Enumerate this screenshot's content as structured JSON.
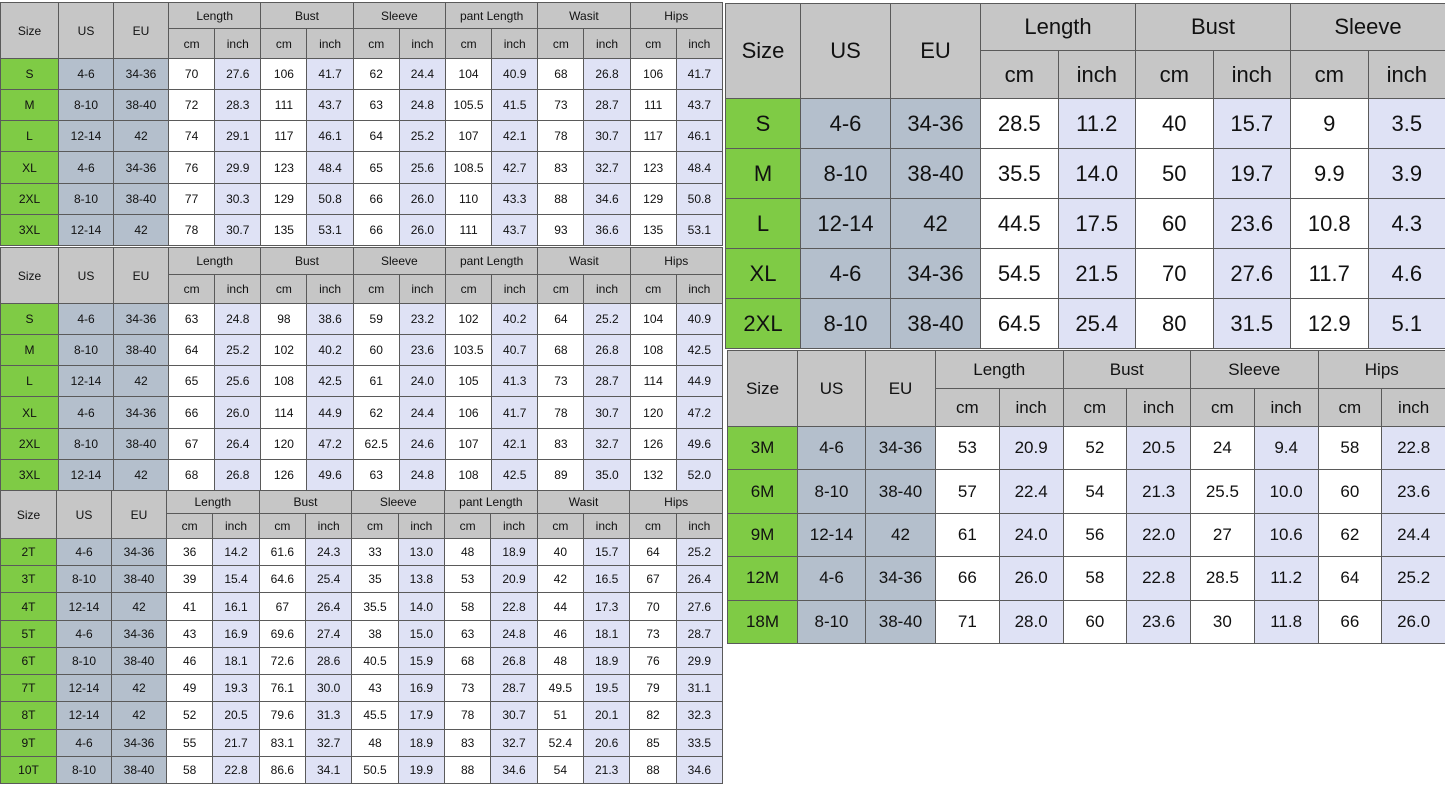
{
  "colors": {
    "header": "#c6c6c6",
    "size_cell": "#7fcb45",
    "us_eu_cell": "#b4bfcc",
    "inch_cell": "#dfe2f5",
    "cm_cell": "#ffffff"
  },
  "tables": [
    {
      "fixed_headers": [
        "Size",
        "US",
        "EU"
      ],
      "groups": [
        "Length",
        "Bust",
        "Sleeve",
        "pant Length",
        "Wasit",
        "Hips"
      ],
      "units": [
        "cm",
        "inch"
      ],
      "rows": [
        [
          "S",
          "4-6",
          "34-36",
          "70",
          "27.6",
          "106",
          "41.7",
          "62",
          "24.4",
          "104",
          "40.9",
          "68",
          "26.8",
          "106",
          "41.7"
        ],
        [
          "M",
          "8-10",
          "38-40",
          "72",
          "28.3",
          "111",
          "43.7",
          "63",
          "24.8",
          "105.5",
          "41.5",
          "73",
          "28.7",
          "111",
          "43.7"
        ],
        [
          "L",
          "12-14",
          "42",
          "74",
          "29.1",
          "117",
          "46.1",
          "64",
          "25.2",
          "107",
          "42.1",
          "78",
          "30.7",
          "117",
          "46.1"
        ],
        [
          "XL",
          "4-6",
          "34-36",
          "76",
          "29.9",
          "123",
          "48.4",
          "65",
          "25.6",
          "108.5",
          "42.7",
          "83",
          "32.7",
          "123",
          "48.4"
        ],
        [
          "2XL",
          "8-10",
          "38-40",
          "77",
          "30.3",
          "129",
          "50.8",
          "66",
          "26.0",
          "110",
          "43.3",
          "88",
          "34.6",
          "129",
          "50.8"
        ],
        [
          "3XL",
          "12-14",
          "42",
          "78",
          "30.7",
          "135",
          "53.1",
          "66",
          "26.0",
          "111",
          "43.7",
          "93",
          "36.6",
          "135",
          "53.1"
        ]
      ]
    },
    {
      "fixed_headers": [
        "Size",
        "US",
        "EU"
      ],
      "groups": [
        "Length",
        "Bust",
        "Sleeve",
        "pant Length",
        "Wasit",
        "Hips"
      ],
      "units": [
        "cm",
        "inch"
      ],
      "rows": [
        [
          "S",
          "4-6",
          "34-36",
          "63",
          "24.8",
          "98",
          "38.6",
          "59",
          "23.2",
          "102",
          "40.2",
          "64",
          "25.2",
          "104",
          "40.9"
        ],
        [
          "M",
          "8-10",
          "38-40",
          "64",
          "25.2",
          "102",
          "40.2",
          "60",
          "23.6",
          "103.5",
          "40.7",
          "68",
          "26.8",
          "108",
          "42.5"
        ],
        [
          "L",
          "12-14",
          "42",
          "65",
          "25.6",
          "108",
          "42.5",
          "61",
          "24.0",
          "105",
          "41.3",
          "73",
          "28.7",
          "114",
          "44.9"
        ],
        [
          "XL",
          "4-6",
          "34-36",
          "66",
          "26.0",
          "114",
          "44.9",
          "62",
          "24.4",
          "106",
          "41.7",
          "78",
          "30.7",
          "120",
          "47.2"
        ],
        [
          "2XL",
          "8-10",
          "38-40",
          "67",
          "26.4",
          "120",
          "47.2",
          "62.5",
          "24.6",
          "107",
          "42.1",
          "83",
          "32.7",
          "126",
          "49.6"
        ],
        [
          "3XL",
          "12-14",
          "42",
          "68",
          "26.8",
          "126",
          "49.6",
          "63",
          "24.8",
          "108",
          "42.5",
          "89",
          "35.0",
          "132",
          "52.0"
        ]
      ]
    },
    {
      "fixed_headers": [
        "Size",
        "US",
        "EU"
      ],
      "groups": [
        "Length",
        "Bust",
        "Sleeve",
        "pant Length",
        "Wasit",
        "Hips"
      ],
      "units": [
        "cm",
        "inch"
      ],
      "rows": [
        [
          "2T",
          "4-6",
          "34-36",
          "36",
          "14.2",
          "61.6",
          "24.3",
          "33",
          "13.0",
          "48",
          "18.9",
          "40",
          "15.7",
          "64",
          "25.2"
        ],
        [
          "3T",
          "8-10",
          "38-40",
          "39",
          "15.4",
          "64.6",
          "25.4",
          "35",
          "13.8",
          "53",
          "20.9",
          "42",
          "16.5",
          "67",
          "26.4"
        ],
        [
          "4T",
          "12-14",
          "42",
          "41",
          "16.1",
          "67",
          "26.4",
          "35.5",
          "14.0",
          "58",
          "22.8",
          "44",
          "17.3",
          "70",
          "27.6"
        ],
        [
          "5T",
          "4-6",
          "34-36",
          "43",
          "16.9",
          "69.6",
          "27.4",
          "38",
          "15.0",
          "63",
          "24.8",
          "46",
          "18.1",
          "73",
          "28.7"
        ],
        [
          "6T",
          "8-10",
          "38-40",
          "46",
          "18.1",
          "72.6",
          "28.6",
          "40.5",
          "15.9",
          "68",
          "26.8",
          "48",
          "18.9",
          "76",
          "29.9"
        ],
        [
          "7T",
          "12-14",
          "42",
          "49",
          "19.3",
          "76.1",
          "30.0",
          "43",
          "16.9",
          "73",
          "28.7",
          "49.5",
          "19.5",
          "79",
          "31.1"
        ],
        [
          "8T",
          "12-14",
          "42",
          "52",
          "20.5",
          "79.6",
          "31.3",
          "45.5",
          "17.9",
          "78",
          "30.7",
          "51",
          "20.1",
          "82",
          "32.3"
        ],
        [
          "9T",
          "4-6",
          "34-36",
          "55",
          "21.7",
          "83.1",
          "32.7",
          "48",
          "18.9",
          "83",
          "32.7",
          "52.4",
          "20.6",
          "85",
          "33.5"
        ],
        [
          "10T",
          "8-10",
          "38-40",
          "58",
          "22.8",
          "86.6",
          "34.1",
          "50.5",
          "19.9",
          "88",
          "34.6",
          "54",
          "21.3",
          "88",
          "34.6"
        ]
      ]
    },
    {
      "fixed_headers": [
        "Size",
        "US",
        "EU"
      ],
      "groups": [
        "Length",
        "Bust",
        "Sleeve"
      ],
      "units": [
        "cm",
        "inch"
      ],
      "rows": [
        [
          "S",
          "4-6",
          "34-36",
          "28.5",
          "11.2",
          "40",
          "15.7",
          "9",
          "3.5"
        ],
        [
          "M",
          "8-10",
          "38-40",
          "35.5",
          "14.0",
          "50",
          "19.7",
          "9.9",
          "3.9"
        ],
        [
          "L",
          "12-14",
          "42",
          "44.5",
          "17.5",
          "60",
          "23.6",
          "10.8",
          "4.3"
        ],
        [
          "XL",
          "4-6",
          "34-36",
          "54.5",
          "21.5",
          "70",
          "27.6",
          "11.7",
          "4.6"
        ],
        [
          "2XL",
          "8-10",
          "38-40",
          "64.5",
          "25.4",
          "80",
          "31.5",
          "12.9",
          "5.1"
        ]
      ]
    },
    {
      "fixed_headers": [
        "Size",
        "US",
        "EU"
      ],
      "groups": [
        "Length",
        "Bust",
        "Sleeve",
        "Hips"
      ],
      "units": [
        "cm",
        "inch"
      ],
      "rows": [
        [
          "3M",
          "4-6",
          "34-36",
          "53",
          "20.9",
          "52",
          "20.5",
          "24",
          "9.4",
          "58",
          "22.8"
        ],
        [
          "6M",
          "8-10",
          "38-40",
          "57",
          "22.4",
          "54",
          "21.3",
          "25.5",
          "10.0",
          "60",
          "23.6"
        ],
        [
          "9M",
          "12-14",
          "42",
          "61",
          "24.0",
          "56",
          "22.0",
          "27",
          "10.6",
          "62",
          "24.4"
        ],
        [
          "12M",
          "4-6",
          "34-36",
          "66",
          "26.0",
          "58",
          "22.8",
          "28.5",
          "11.2",
          "64",
          "25.2"
        ],
        [
          "18M",
          "8-10",
          "38-40",
          "71",
          "28.0",
          "60",
          "23.6",
          "30",
          "11.8",
          "66",
          "26.0"
        ]
      ]
    }
  ]
}
